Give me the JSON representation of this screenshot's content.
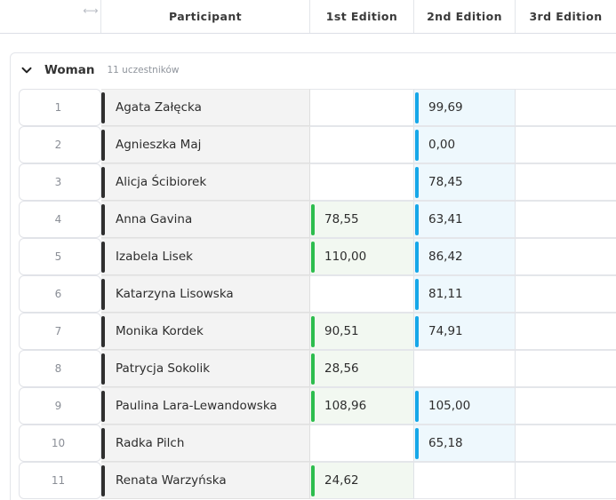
{
  "header": {
    "resize_icon": "resize-horizontal-icon",
    "columns": {
      "participant": "Participant",
      "edition1": "1st Edition",
      "edition2": "2nd Edition",
      "edition3": "3rd Edition"
    }
  },
  "group": {
    "title": "Woman",
    "count_text": "11 uczestników",
    "toggle_icon": "chevron-down-icon"
  },
  "colors": {
    "name_bar": "#2f2f2f",
    "edition1_bar": "#2dbd4e",
    "edition2_bar": "#16a7e8",
    "edition1_fill": "#f2f8f1",
    "edition2_fill": "#eef8fd"
  },
  "rows": [
    {
      "index": "1",
      "name": "Agata Załęcka",
      "e1": "",
      "e2": "99,69",
      "e3": ""
    },
    {
      "index": "2",
      "name": "Agnieszka Maj",
      "e1": "",
      "e2": "0,00",
      "e3": ""
    },
    {
      "index": "3",
      "name": "Alicja Ścibiorek",
      "e1": "",
      "e2": "78,45",
      "e3": ""
    },
    {
      "index": "4",
      "name": "Anna Gavina",
      "e1": "78,55",
      "e2": "63,41",
      "e3": ""
    },
    {
      "index": "5",
      "name": "Izabela Lisek",
      "e1": "110,00",
      "e2": "86,42",
      "e3": ""
    },
    {
      "index": "6",
      "name": "Katarzyna Lisowska",
      "e1": "",
      "e2": "81,11",
      "e3": ""
    },
    {
      "index": "7",
      "name": "Monika Kordek",
      "e1": "90,51",
      "e2": "74,91",
      "e3": ""
    },
    {
      "index": "8",
      "name": "Patrycja Sokolik",
      "e1": "28,56",
      "e2": "",
      "e3": ""
    },
    {
      "index": "9",
      "name": "Paulina Lara-Lewandowska",
      "e1": "108,96",
      "e2": "105,00",
      "e3": ""
    },
    {
      "index": "10",
      "name": "Radka Pilch",
      "e1": "",
      "e2": "65,18",
      "e3": ""
    },
    {
      "index": "11",
      "name": "Renata Warzyńska",
      "e1": "24,62",
      "e2": "",
      "e3": ""
    }
  ]
}
